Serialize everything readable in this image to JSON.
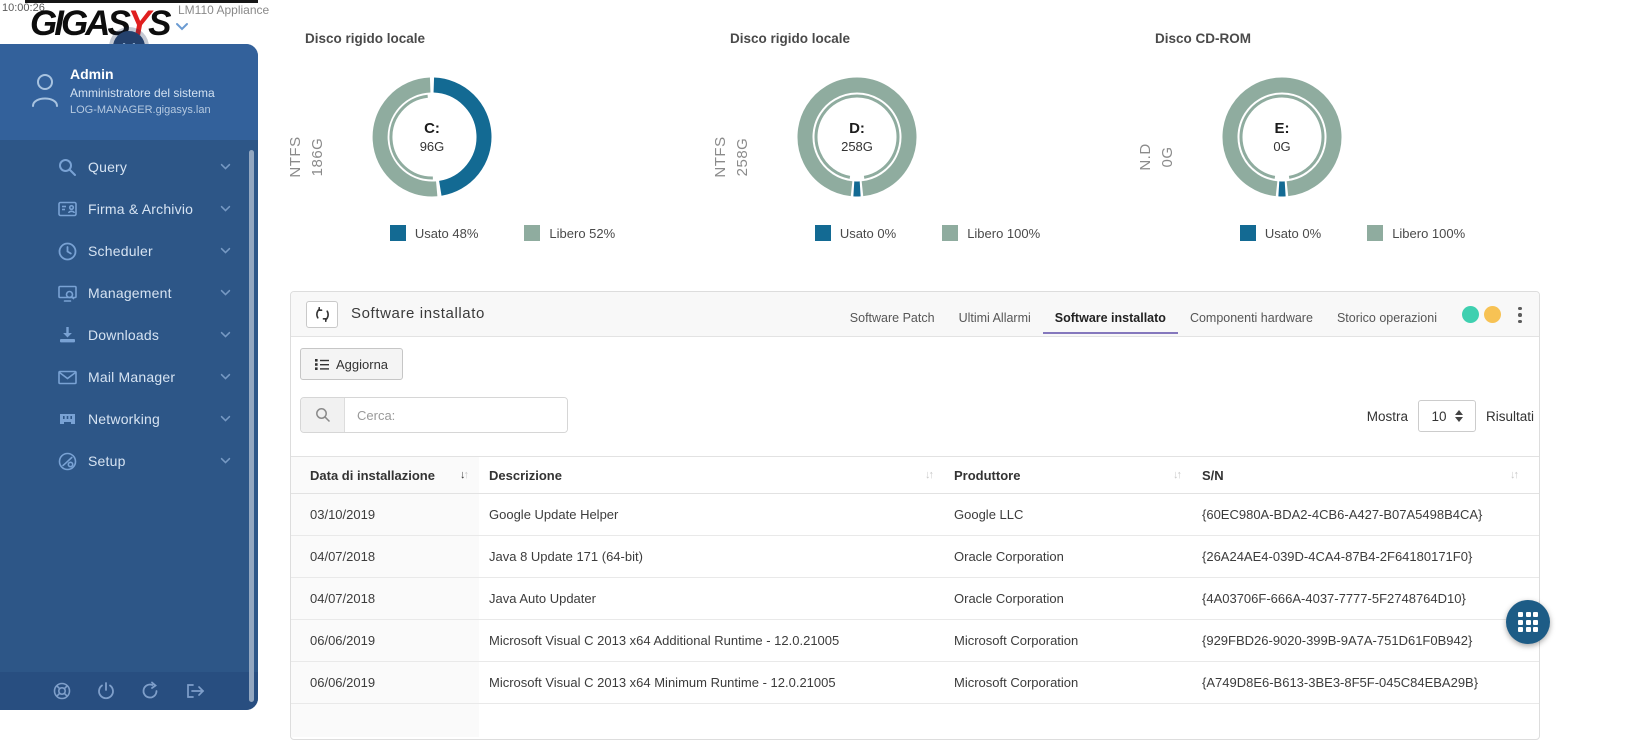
{
  "topbar": {
    "time": "10:00:26",
    "appliance": "LM110 Appliance",
    "logo_black1": "GIGAS",
    "logo_red": "Y",
    "logo_black2": "S"
  },
  "colors": {
    "used": "#136a93",
    "free": "#8fac9f",
    "sidebar": "#2d5687",
    "sidebar_user": "#33619b",
    "dot_green": "#3fd0b0",
    "dot_yellow": "#f7c254",
    "tab_underline": "#8578bd",
    "fab": "#1d5c86",
    "logo_red_color": "#e01f1f"
  },
  "sidebar": {
    "user": {
      "name": "Admin",
      "role": "Amministratore del sistema",
      "host": "LOG-MANAGER.gigasys.lan"
    },
    "items": [
      {
        "label": "Query",
        "icon": "search-icon"
      },
      {
        "label": "Firma & Archivio",
        "icon": "id-card-icon"
      },
      {
        "label": "Scheduler",
        "icon": "clock-icon"
      },
      {
        "label": "Management",
        "icon": "monitor-search-icon"
      },
      {
        "label": "Downloads",
        "icon": "download-icon"
      },
      {
        "label": "Mail Manager",
        "icon": "envelope-icon"
      },
      {
        "label": "Networking",
        "icon": "ethernet-icon"
      },
      {
        "label": "Setup",
        "icon": "globe-wrench-icon"
      }
    ],
    "footer_icons": [
      "help-icon",
      "power-icon",
      "reload-icon",
      "logout-icon"
    ]
  },
  "disks": [
    {
      "title": "Disco rigido locale",
      "fs": "NTFS",
      "size": "186G",
      "drive": "C:",
      "center_value": "96G",
      "used_pct": 48,
      "free_pct": 52,
      "used_label": "Usato 48%",
      "free_label": "Libero 52%"
    },
    {
      "title": "Disco rigido locale",
      "fs": "NTFS",
      "size": "258G",
      "drive": "D:",
      "center_value": "258G",
      "used_pct": 0,
      "free_pct": 100,
      "used_label": "Usato 0%",
      "free_label": "Libero 100%"
    },
    {
      "title": "Disco CD-ROM",
      "fs": "N.D",
      "size": "0G",
      "drive": "E:",
      "center_value": "0G",
      "used_pct": 0,
      "free_pct": 100,
      "used_label": "Usato 0%",
      "free_label": "Libero 100%"
    }
  ],
  "chart_data": [
    {
      "type": "pie",
      "title": "Disco rigido locale (C:)",
      "categories": [
        "Usato",
        "Libero"
      ],
      "values": [
        48,
        52
      ],
      "labels": [
        "Usato 48%",
        "Libero 52%"
      ],
      "center": "C: 96G",
      "colors": [
        "#136a93",
        "#8fac9f"
      ],
      "legend_position": "bottom"
    },
    {
      "type": "pie",
      "title": "Disco rigido locale (D:)",
      "categories": [
        "Usato",
        "Libero"
      ],
      "values": [
        0,
        100
      ],
      "labels": [
        "Usato 0%",
        "Libero 100%"
      ],
      "center": "D: 258G",
      "colors": [
        "#136a93",
        "#8fac9f"
      ],
      "legend_position": "bottom"
    },
    {
      "type": "pie",
      "title": "Disco CD-ROM (E:)",
      "categories": [
        "Usato",
        "Libero"
      ],
      "values": [
        0,
        100
      ],
      "labels": [
        "Usato 0%",
        "Libero 100%"
      ],
      "center": "E: 0G",
      "colors": [
        "#136a93",
        "#8fac9f"
      ],
      "legend_position": "bottom"
    }
  ],
  "panel": {
    "title": "Software installato",
    "tabs": [
      {
        "label": "Software Patch",
        "active": false
      },
      {
        "label": "Ultimi Allarmi",
        "active": false
      },
      {
        "label": "Software installato",
        "active": true
      },
      {
        "label": "Componenti hardware",
        "active": false
      },
      {
        "label": "Storico operazioni",
        "active": false
      }
    ],
    "toolbar": {
      "aggiorna_label": "Aggiorna",
      "search_placeholder": "Cerca:",
      "mostra_label": "Mostra",
      "page_size": "10",
      "results_label": "Risultati"
    },
    "table": {
      "columns": [
        {
          "label": "Data di installazione",
          "sorted": true
        },
        {
          "label": "Descrizione",
          "sorted": false
        },
        {
          "label": "Produttore",
          "sorted": false
        },
        {
          "label": "S/N",
          "sorted": false
        }
      ],
      "rows": [
        [
          "03/10/2019",
          "Google Update Helper",
          "Google LLC",
          "{60EC980A-BDA2-4CB6-A427-B07A5498B4CA}"
        ],
        [
          "04/07/2018",
          "Java 8 Update 171 (64-bit)",
          "Oracle Corporation",
          "{26A24AE4-039D-4CA4-87B4-2F64180171F0}"
        ],
        [
          "04/07/2018",
          "Java Auto Updater",
          "Oracle Corporation",
          "{4A03706F-666A-4037-7777-5F2748764D10}"
        ],
        [
          "06/06/2019",
          "Microsoft Visual C 2013 x64 Additional Runtime - 12.0.21005",
          "Microsoft Corporation",
          "{929FBD26-9020-399B-9A7A-751D61F0B942}"
        ],
        [
          "06/06/2019",
          "Microsoft Visual C 2013 x64 Minimum Runtime - 12.0.21005",
          "Microsoft Corporation",
          "{A749D8E6-B613-3BE3-8F5F-045C84EBA29B}"
        ]
      ]
    }
  }
}
